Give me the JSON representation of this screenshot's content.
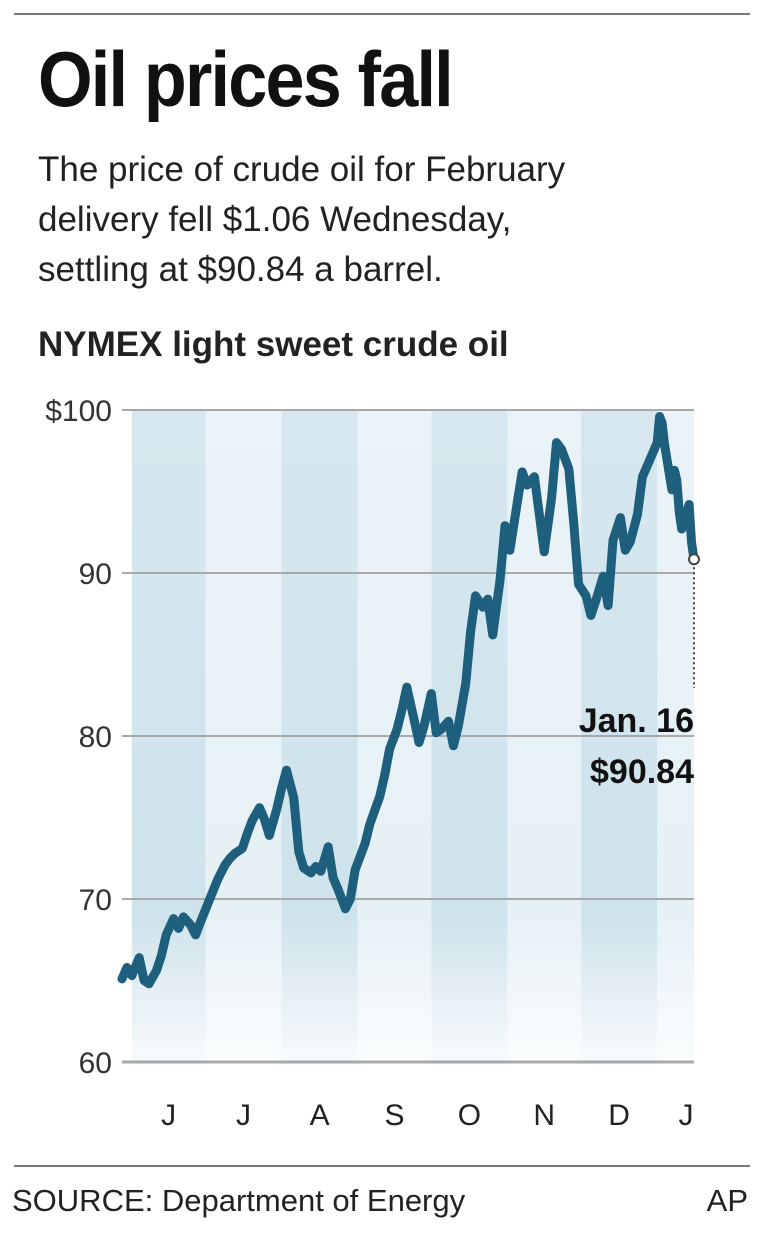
{
  "header": {
    "title": "Oil prices fall",
    "subtitle_lines": [
      "The price of crude oil for February",
      "delivery fell $1.06 Wednesday,",
      "settling at $90.84 a barrel."
    ]
  },
  "chart_data": {
    "type": "line",
    "title": "NYMEX light sweet crude oil",
    "xlabel": "",
    "ylabel": "",
    "ylim": [
      60,
      100
    ],
    "yticks": [
      60,
      70,
      80,
      90,
      100
    ],
    "ytick_labels": [
      "60",
      "70",
      "80",
      "90",
      "$100"
    ],
    "grid": true,
    "xlim": [
      "2007-05-28",
      "2008-01-16"
    ],
    "month_bands": [
      {
        "label": "J",
        "start": "2007-06-01",
        "end": "2007-07-01"
      },
      {
        "label": "J",
        "start": "2007-07-01",
        "end": "2007-08-01"
      },
      {
        "label": "A",
        "start": "2007-08-01",
        "end": "2007-09-01"
      },
      {
        "label": "S",
        "start": "2007-09-01",
        "end": "2007-10-01"
      },
      {
        "label": "O",
        "start": "2007-10-01",
        "end": "2007-11-01"
      },
      {
        "label": "N",
        "start": "2007-11-01",
        "end": "2007-12-01"
      },
      {
        "label": "D",
        "start": "2007-12-01",
        "end": "2008-01-01"
      },
      {
        "label": "J",
        "start": "2008-01-01",
        "end": "2008-01-16"
      }
    ],
    "series": [
      {
        "color": "#1d5f7d",
        "points": [
          [
            "2007-05-28",
            65.1
          ],
          [
            "2007-05-30",
            65.8
          ],
          [
            "2007-06-01",
            65.3
          ],
          [
            "2007-06-04",
            66.4
          ],
          [
            "2007-06-06",
            65.0
          ],
          [
            "2007-06-08",
            64.8
          ],
          [
            "2007-06-11",
            65.6
          ],
          [
            "2007-06-13",
            66.5
          ],
          [
            "2007-06-15",
            67.8
          ],
          [
            "2007-06-18",
            68.8
          ],
          [
            "2007-06-20",
            68.2
          ],
          [
            "2007-06-22",
            68.9
          ],
          [
            "2007-06-25",
            68.4
          ],
          [
            "2007-06-27",
            67.8
          ],
          [
            "2007-06-29",
            68.6
          ],
          [
            "2007-07-03",
            70.1
          ],
          [
            "2007-07-06",
            71.2
          ],
          [
            "2007-07-09",
            72.1
          ],
          [
            "2007-07-11",
            72.5
          ],
          [
            "2007-07-13",
            72.8
          ],
          [
            "2007-07-16",
            73.1
          ],
          [
            "2007-07-18",
            74.0
          ],
          [
            "2007-07-20",
            74.8
          ],
          [
            "2007-07-23",
            75.6
          ],
          [
            "2007-07-25",
            74.9
          ],
          [
            "2007-07-27",
            73.9
          ],
          [
            "2007-07-30",
            75.5
          ],
          [
            "2007-08-01",
            76.8
          ],
          [
            "2007-08-03",
            77.9
          ],
          [
            "2007-08-06",
            76.2
          ],
          [
            "2007-08-08",
            72.9
          ],
          [
            "2007-08-10",
            71.9
          ],
          [
            "2007-08-13",
            71.6
          ],
          [
            "2007-08-15",
            72.0
          ],
          [
            "2007-08-17",
            71.7
          ],
          [
            "2007-08-20",
            73.2
          ],
          [
            "2007-08-22",
            71.3
          ],
          [
            "2007-08-24",
            70.6
          ],
          [
            "2007-08-27",
            69.4
          ],
          [
            "2007-08-29",
            70.0
          ],
          [
            "2007-08-31",
            71.8
          ],
          [
            "2007-09-04",
            73.4
          ],
          [
            "2007-09-06",
            74.6
          ],
          [
            "2007-09-10",
            76.3
          ],
          [
            "2007-09-12",
            77.6
          ],
          [
            "2007-09-14",
            79.2
          ],
          [
            "2007-09-17",
            80.4
          ],
          [
            "2007-09-19",
            81.6
          ],
          [
            "2007-09-21",
            83.0
          ],
          [
            "2007-09-24",
            81.0
          ],
          [
            "2007-09-26",
            79.6
          ],
          [
            "2007-09-28",
            80.6
          ],
          [
            "2007-10-01",
            82.6
          ],
          [
            "2007-10-03",
            80.2
          ],
          [
            "2007-10-05",
            80.4
          ],
          [
            "2007-10-08",
            80.9
          ],
          [
            "2007-10-10",
            79.4
          ],
          [
            "2007-10-12",
            80.6
          ],
          [
            "2007-10-15",
            83.2
          ],
          [
            "2007-10-17",
            86.4
          ],
          [
            "2007-10-19",
            88.6
          ],
          [
            "2007-10-22",
            87.9
          ],
          [
            "2007-10-24",
            88.4
          ],
          [
            "2007-10-26",
            86.2
          ],
          [
            "2007-10-29",
            89.6
          ],
          [
            "2007-10-31",
            92.9
          ],
          [
            "2007-11-02",
            91.4
          ],
          [
            "2007-11-05",
            94.3
          ],
          [
            "2007-11-07",
            96.2
          ],
          [
            "2007-11-09",
            95.4
          ],
          [
            "2007-11-12",
            95.9
          ],
          [
            "2007-11-14",
            93.6
          ],
          [
            "2007-11-16",
            91.3
          ],
          [
            "2007-11-19",
            94.6
          ],
          [
            "2007-11-21",
            98.0
          ],
          [
            "2007-11-23",
            97.6
          ],
          [
            "2007-11-26",
            96.4
          ],
          [
            "2007-11-28",
            93.1
          ],
          [
            "2007-11-30",
            89.3
          ],
          [
            "2007-12-03",
            88.6
          ],
          [
            "2007-12-05",
            87.4
          ],
          [
            "2007-12-07",
            88.3
          ],
          [
            "2007-12-10",
            89.8
          ],
          [
            "2007-12-12",
            88.0
          ],
          [
            "2007-12-14",
            92.0
          ],
          [
            "2007-12-17",
            93.4
          ],
          [
            "2007-12-19",
            91.4
          ],
          [
            "2007-12-21",
            91.9
          ],
          [
            "2007-12-24",
            93.6
          ],
          [
            "2007-12-26",
            95.9
          ],
          [
            "2007-12-28",
            96.6
          ],
          [
            "2008-01-01",
            98.0
          ],
          [
            "2008-01-02",
            99.6
          ],
          [
            "2008-01-03",
            99.2
          ],
          [
            "2008-01-04",
            97.9
          ],
          [
            "2008-01-07",
            95.1
          ],
          [
            "2008-01-08",
            96.3
          ],
          [
            "2008-01-09",
            95.7
          ],
          [
            "2008-01-10",
            93.7
          ],
          [
            "2008-01-11",
            92.7
          ],
          [
            "2008-01-14",
            94.2
          ],
          [
            "2008-01-15",
            91.9
          ],
          [
            "2008-01-16",
            90.84
          ]
        ]
      }
    ],
    "annotation": {
      "date_label": "Jan. 16",
      "value_label": "$90.84",
      "x": "2008-01-16",
      "y": 90.84
    }
  },
  "footer": {
    "source": "SOURCE: Department of Energy",
    "credit": "AP"
  }
}
